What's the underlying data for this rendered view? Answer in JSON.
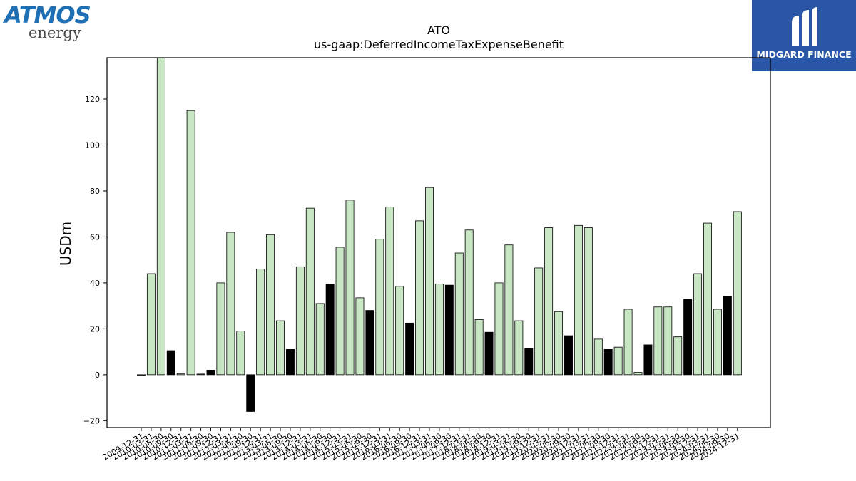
{
  "logos": {
    "left_brand": "ATMOS",
    "left_sub": "energy",
    "right_name": "MIDGARD FINANCE"
  },
  "chart_data": {
    "type": "bar",
    "title": "ATO",
    "subtitle": "us-gaap:DeferredIncomeTaxExpenseBenefit",
    "ylabel": "USDm",
    "xlabel": "",
    "ylim": [
      -23,
      138
    ],
    "yticks": [
      -20,
      0,
      20,
      40,
      60,
      80,
      100,
      120
    ],
    "grid": false,
    "legend": "none",
    "colors": {
      "quarter": "#c8e6c4",
      "year_end": "#000000",
      "edge": "#000000"
    },
    "categories": [
      "2009-12-31",
      "2010-03-31",
      "2010-06-30",
      "2010-09-30",
      "2010-12-31",
      "2011-03-31",
      "2011-06-30",
      "2011-09-30",
      "2011-12-31",
      "2012-03-31",
      "2012-06-30",
      "2012-09-30",
      "2012-12-31",
      "2013-03-31",
      "2013-06-30",
      "2013-09-30",
      "2013-12-31",
      "2014-03-31",
      "2014-06-30",
      "2014-09-30",
      "2014-12-31",
      "2015-03-31",
      "2015-06-30",
      "2015-09-30",
      "2015-12-31",
      "2016-03-31",
      "2016-06-30",
      "2016-09-30",
      "2016-12-31",
      "2017-03-31",
      "2017-06-30",
      "2017-09-30",
      "2017-12-31",
      "2018-03-31",
      "2018-06-30",
      "2018-09-30",
      "2018-12-31",
      "2019-03-31",
      "2019-06-30",
      "2019-09-30",
      "2019-12-31",
      "2020-03-31",
      "2020-06-30",
      "2020-09-30",
      "2020-12-31",
      "2021-03-31",
      "2021-06-30",
      "2021-09-30",
      "2021-12-31",
      "2022-03-31",
      "2022-06-30",
      "2022-09-30",
      "2022-12-31",
      "2023-03-31",
      "2023-06-30",
      "2023-09-30",
      "2023-12-31",
      "2024-03-31",
      "2024-06-30",
      "2024-09-30",
      "2024-12-31"
    ],
    "values": [
      0,
      44,
      138,
      10.5,
      0.5,
      115,
      0.3,
      2,
      40,
      62,
      19,
      -16,
      46,
      61,
      23.5,
      11,
      47,
      72.5,
      31,
      39.5,
      55.5,
      76,
      33.5,
      28,
      59,
      73,
      38.5,
      22.5,
      67,
      81.5,
      39.5,
      39,
      53,
      63,
      24,
      18.5,
      40,
      56.5,
      23.5,
      11.5,
      46.5,
      64,
      27.5,
      17,
      65,
      64,
      15.5,
      11,
      12,
      28.5,
      1,
      13,
      29.5,
      29.5,
      16.5,
      33,
      44,
      66,
      28.5,
      34,
      71
    ],
    "year_end_flags": [
      0,
      0,
      0,
      1,
      0,
      0,
      0,
      1,
      0,
      0,
      0,
      1,
      0,
      0,
      0,
      1,
      0,
      0,
      0,
      1,
      0,
      0,
      0,
      1,
      0,
      0,
      0,
      1,
      0,
      0,
      0,
      1,
      0,
      0,
      0,
      1,
      0,
      0,
      0,
      1,
      0,
      0,
      0,
      1,
      0,
      0,
      0,
      1,
      0,
      0,
      0,
      1,
      0,
      0,
      0,
      1,
      0,
      0,
      0,
      1,
      0
    ]
  }
}
